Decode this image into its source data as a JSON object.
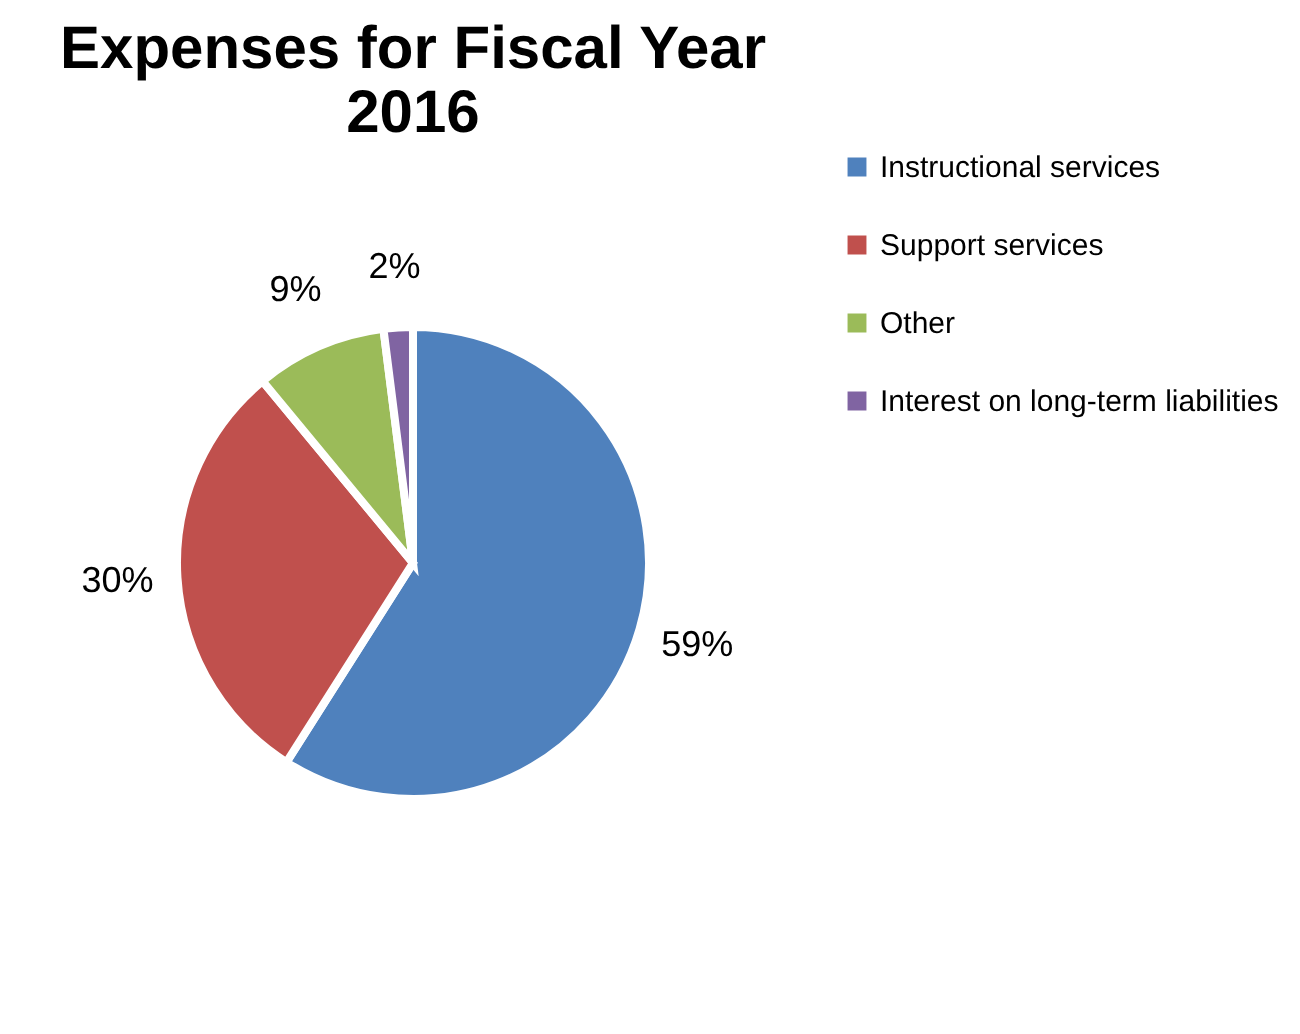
{
  "chart_data": {
    "type": "pie",
    "title": "Expenses for Fiscal Year 2016",
    "categories": [
      "Instructional services",
      "Support services",
      "Other",
      "Interest on long-term liabilities"
    ],
    "values": [
      59,
      30,
      9,
      2
    ],
    "value_labels": [
      "59%",
      "30%",
      "9%",
      "2%"
    ],
    "colors": [
      "#4f81bd",
      "#c0504d",
      "#9bbb59",
      "#8064a2"
    ],
    "legend": "right"
  }
}
